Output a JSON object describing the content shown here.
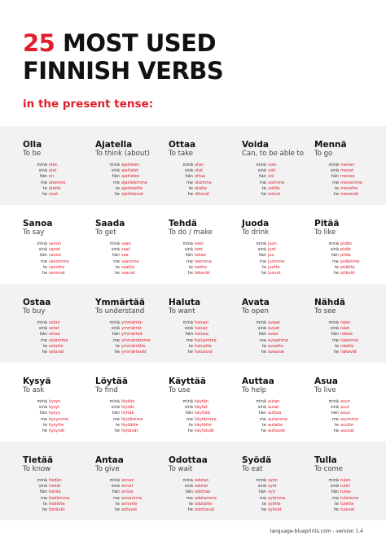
{
  "title": {
    "number": "25",
    "line1": "MOST USED",
    "line2": "FINNISH VERBS"
  },
  "subtitle": "in the present tense:",
  "pronouns": [
    "minä",
    "sinä",
    "hän",
    "me",
    "te",
    "he"
  ],
  "verbs": [
    {
      "name": "Olla",
      "meaning": "To be",
      "forms": [
        "olen",
        "olet",
        "on",
        "olemme",
        "olette",
        "ovat"
      ]
    },
    {
      "name": "Ajatella",
      "meaning": "To think (about)",
      "forms": [
        "ajattelen",
        "ajattelet",
        "ajattelee",
        "ajattelemme",
        "ajattelette",
        "ajattelevat"
      ]
    },
    {
      "name": "Ottaa",
      "meaning": "To take",
      "forms": [
        "otan",
        "otat",
        "ottaa",
        "otamme",
        "otatte",
        "ottavat"
      ]
    },
    {
      "name": "Voida",
      "meaning": "Can, to be able to",
      "forms": [
        "voin",
        "voit",
        "voi",
        "voimme",
        "voitte",
        "voivat"
      ]
    },
    {
      "name": "Mennä",
      "meaning": "To go",
      "forms": [
        "menen",
        "menet",
        "menee",
        "menemme",
        "menette",
        "menevät"
      ]
    },
    {
      "name": "Sanoa",
      "meaning": "To say",
      "forms": [
        "sanon",
        "sanot",
        "sanoo",
        "sanomme",
        "sanotte",
        "sanovat"
      ]
    },
    {
      "name": "Saada",
      "meaning": "To get",
      "forms": [
        "saan",
        "saat",
        "saa",
        "saamme",
        "saatte",
        "saavat"
      ]
    },
    {
      "name": "Tehdä",
      "meaning": "To do / make",
      "forms": [
        "teen",
        "teet",
        "tekee",
        "teemme",
        "teette",
        "tekevät"
      ]
    },
    {
      "name": "Juoda",
      "meaning": "To drink",
      "forms": [
        "juon",
        "juot",
        "juo",
        "juomme",
        "juotte",
        "juovat"
      ]
    },
    {
      "name": "Pitää",
      "meaning": "To like",
      "forms": [
        "pidän",
        "pidät",
        "pitää",
        "pidämme",
        "pidätte",
        "pitävät"
      ]
    },
    {
      "name": "Ostaa",
      "meaning": "To buy",
      "forms": [
        "ostan",
        "ostat",
        "ostaa",
        "ostamme",
        "ostatte",
        "ostavat"
      ]
    },
    {
      "name": "Ymmärtää",
      "meaning": "To understand",
      "forms": [
        "ymmärrän",
        "ymmärrät",
        "ymmärtää",
        "ymmärrämme",
        "ymmärrätte",
        "ymmärtävät"
      ]
    },
    {
      "name": "Haluta",
      "meaning": "To want",
      "forms": [
        "haluan",
        "haluat",
        "haluaa",
        "haluamme",
        "haluatte",
        "haluavat"
      ]
    },
    {
      "name": "Avata",
      "meaning": "To open",
      "forms": [
        "avaan",
        "avaat",
        "avaa",
        "avaamme",
        "avaatte",
        "avaavat"
      ]
    },
    {
      "name": "Nähdä",
      "meaning": "To see",
      "forms": [
        "näen",
        "näet",
        "näkee",
        "näemme",
        "näette",
        "näkevät"
      ]
    },
    {
      "name": "Kysyä",
      "meaning": "To ask",
      "forms": [
        "kysyn",
        "kysyt",
        "kysyy",
        "kysymme",
        "kysytte",
        "kysyvät"
      ]
    },
    {
      "name": "Löytää",
      "meaning": "To find",
      "forms": [
        "löydän",
        "löydät",
        "löytää",
        "löydämme",
        "löydätte",
        "löytävät"
      ]
    },
    {
      "name": "Käyttää",
      "meaning": "To use",
      "forms": [
        "käytän",
        "käytät",
        "käyttää",
        "käytämme",
        "käytätte",
        "käyttävät"
      ]
    },
    {
      "name": "Auttaa",
      "meaning": "To help",
      "forms": [
        "autan",
        "autat",
        "auttaa",
        "autamme",
        "autatte",
        "auttavat"
      ]
    },
    {
      "name": "Asua",
      "meaning": "To live",
      "forms": [
        "asun",
        "asut",
        "asuu",
        "asumme",
        "asutte",
        "asuvat"
      ]
    },
    {
      "name": "Tietää",
      "meaning": "To know",
      "forms": [
        "tiedän",
        "tiedät",
        "tietää",
        "tiedämme",
        "tiedätte",
        "tietävät"
      ]
    },
    {
      "name": "Antaa",
      "meaning": "To give",
      "forms": [
        "annan",
        "annat",
        "antaa",
        "annamme",
        "annatte",
        "antavat"
      ]
    },
    {
      "name": "Odottaa",
      "meaning": "To wait",
      "forms": [
        "odotan",
        "odotat",
        "odottaa",
        "odotamme",
        "odotatte",
        "odottavat"
      ]
    },
    {
      "name": "Syödä",
      "meaning": "To eat",
      "forms": [
        "syön",
        "syöt",
        "syö",
        "syömme",
        "syötte",
        "syövät"
      ]
    },
    {
      "name": "Tulla",
      "meaning": "To come",
      "forms": [
        "tulen",
        "tulet",
        "tulee",
        "tulemme",
        "tulette",
        "tulevat"
      ]
    }
  ],
  "footer": "language-blueprints.com - version 1.4"
}
